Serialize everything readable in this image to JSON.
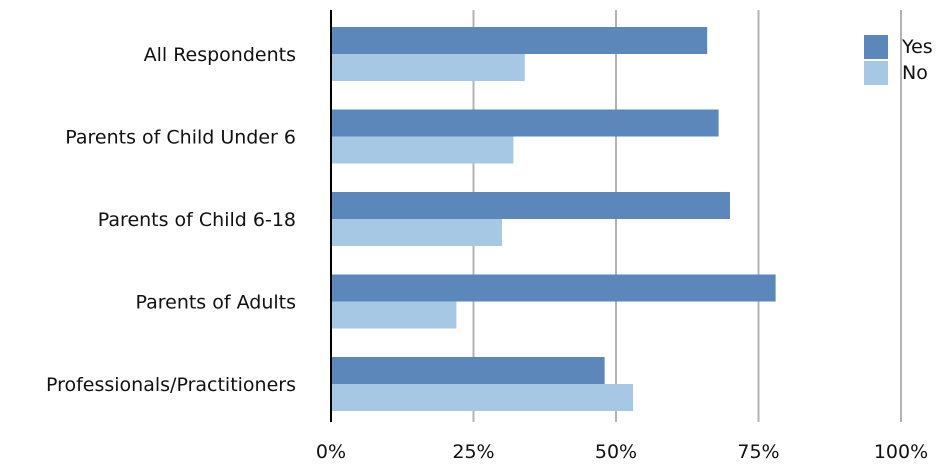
{
  "chart_data": {
    "type": "bar",
    "orientation": "horizontal",
    "categories": [
      "All Respondents",
      "Parents of Child Under 6",
      "Parents of Child 6-18",
      "Parents of Adults",
      "Professionals/Practitioners"
    ],
    "series": [
      {
        "name": "Yes",
        "values": [
          66,
          68,
          70,
          78,
          48
        ],
        "color": "#5b87bb"
      },
      {
        "name": "No",
        "values": [
          34,
          32,
          30,
          22,
          53
        ],
        "color": "#a6c8e4"
      }
    ],
    "x_ticks": [
      "0%",
      "25%",
      "50%",
      "75%",
      "100%"
    ],
    "xlim": [
      0,
      100
    ],
    "unit": "%",
    "grid": true,
    "legend_position": "top-right",
    "title": "",
    "xlabel": "",
    "ylabel": ""
  }
}
